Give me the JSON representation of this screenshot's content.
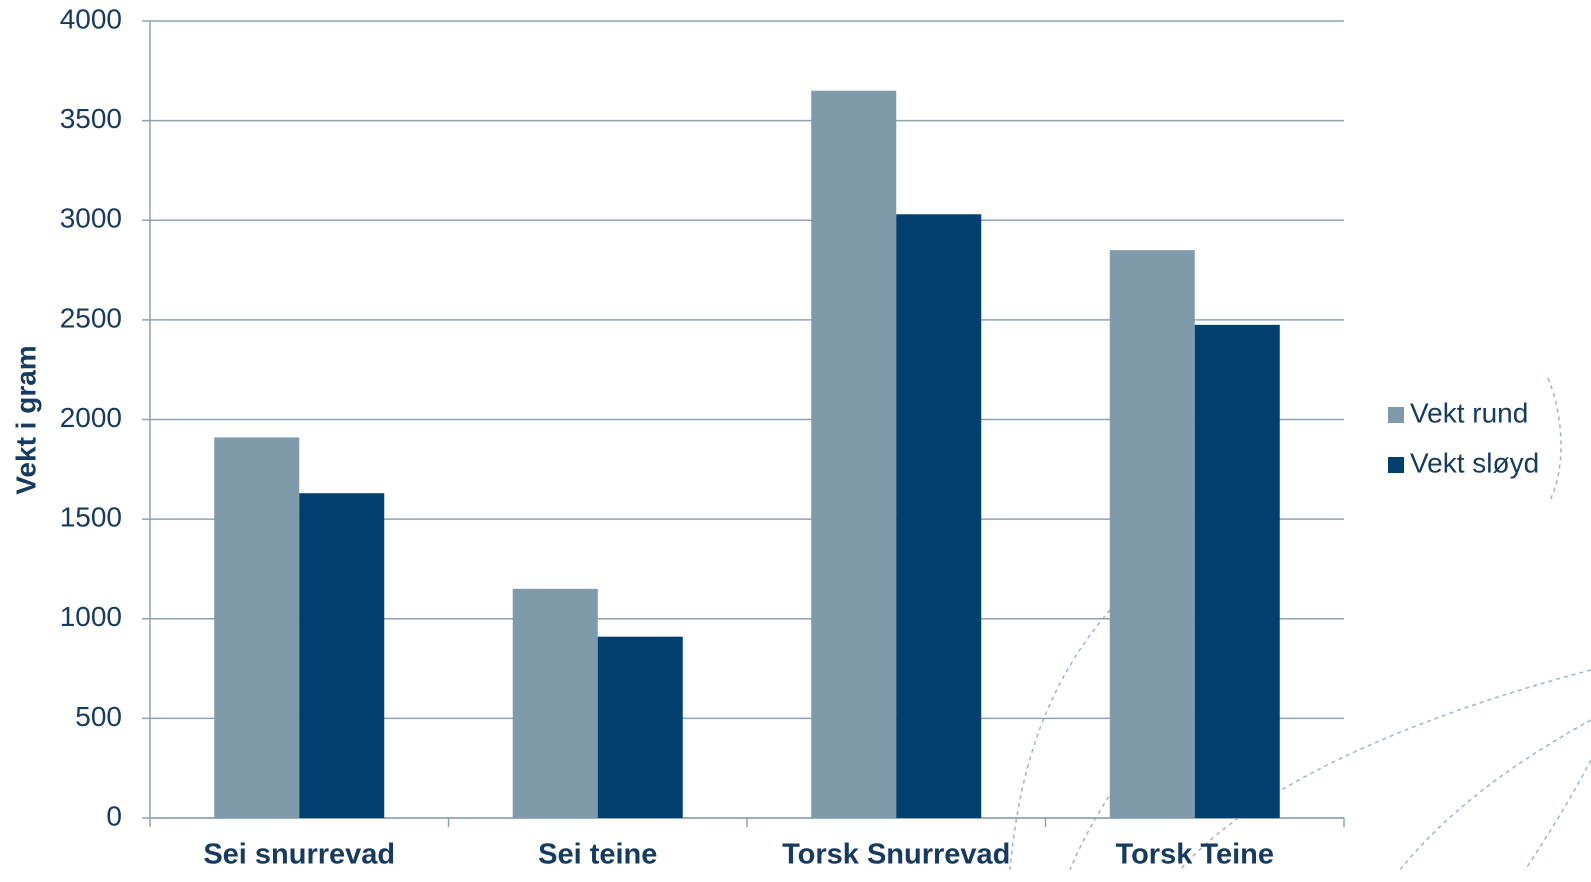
{
  "chart_data": {
    "type": "bar",
    "y_label": "Vekt i gram",
    "categories": [
      "Sei snurrevad",
      "Sei teine",
      "Torsk Snurrevad",
      "Torsk Teine"
    ],
    "series": [
      {
        "name": "Vekt rund",
        "color": "#7f9aab",
        "values": [
          1910,
          1150,
          3650,
          2850
        ]
      },
      {
        "name": "Vekt sløyd",
        "color": "#003f6e",
        "values": [
          1630,
          910,
          3030,
          2475
        ]
      }
    ],
    "ylim": [
      0,
      4000
    ],
    "yticks": [
      0,
      500,
      1000,
      1500,
      2000,
      2500,
      3000,
      3500,
      4000
    ],
    "grid": true,
    "legend": "right"
  }
}
